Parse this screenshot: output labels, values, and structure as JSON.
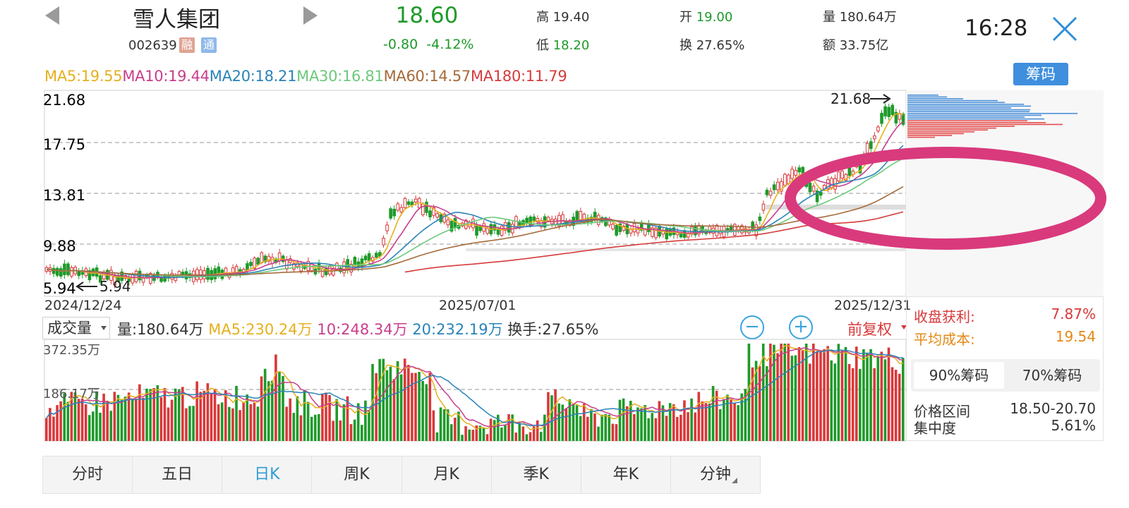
{
  "header": {
    "stock_name": "雪人集团",
    "stock_code": "002639",
    "tag_rong": "融",
    "tag_tong": "通",
    "price": "18.60",
    "change": "-0.80",
    "change_pct": "-4.12%",
    "stats": [
      {
        "label": "高",
        "value": "19.40"
      },
      {
        "label": "低",
        "value": "18.20"
      },
      {
        "label": "开",
        "value": "19.00"
      },
      {
        "label": "换",
        "value": "27.65%"
      },
      {
        "label": "量",
        "value": "180.64万"
      },
      {
        "label": "额",
        "value": "33.75亿"
      }
    ],
    "clock": "16:28"
  },
  "ma_legend": [
    {
      "text": "MA5:19.55",
      "color": "#e5b01e"
    },
    {
      "text": "MA10:19.44",
      "color": "#c83e8c"
    },
    {
      "text": "MA20:18.21",
      "color": "#2a83b8"
    },
    {
      "text": "MA30:16.81",
      "color": "#6cc97b"
    },
    {
      "text": "MA60:14.57",
      "color": "#a56b3a"
    },
    {
      "text": "MA180:11.79",
      "color": "#d63b3b"
    }
  ],
  "chip_button": "筹码",
  "chart": {
    "y_labels": [
      "21.68",
      "17.75",
      "13.81",
      "9.88",
      "5.94"
    ],
    "high_marker": "21.68",
    "low_marker": "5.94",
    "x_labels": [
      "2024/12/24",
      "2025/07/01",
      "2025/12/31"
    ]
  },
  "volume_header": {
    "select_label": "成交量",
    "vol": "量:180.64万",
    "ma5": "MA5:230.24万",
    "ma10": "10:248.34万",
    "ma20": "20:232.19万",
    "turnover": "换手:27.65%",
    "zoom_out": "−",
    "zoom_in": "+",
    "fq": "前复权"
  },
  "volume_chart": {
    "y_labels": [
      "372.35万",
      "186.17万"
    ]
  },
  "chip_panel": {
    "profit_label": "收盘获利:",
    "profit_value": "7.87%",
    "avg_cost_label": "平均成本:",
    "avg_cost_value": "19.54",
    "tab_90": "90%筹码",
    "tab_70": "70%筹码",
    "range_label": "价格区间",
    "range_value": "18.50-20.70",
    "concentration_label": "集中度",
    "concentration_value": "5.61%"
  },
  "period_tabs": [
    "分时",
    "五日",
    "日K",
    "周K",
    "月K",
    "季K",
    "年K",
    "分钟"
  ],
  "colors": {
    "up": "#d9383a",
    "down": "#1e9a2a",
    "accent": "#2f9bd6",
    "annotation": "#d93a7c"
  }
}
